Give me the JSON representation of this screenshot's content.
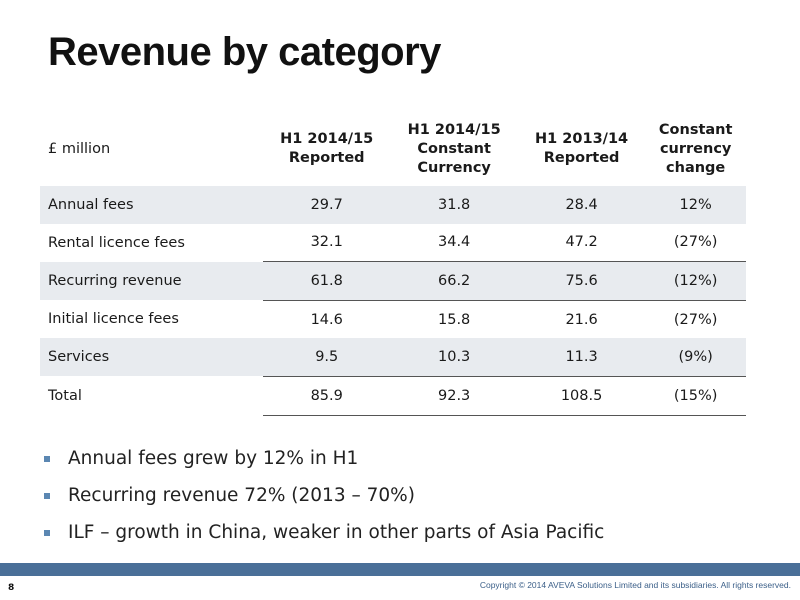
{
  "slide": {
    "title": "Revenue by category",
    "page_number": "8",
    "copyright": "Copyright © 2014 AVEVA Solutions Limited and its subsidiaries. All rights reserved."
  },
  "table": {
    "headers": [
      "£ million",
      "H1 2014/15\nReported",
      "H1 2014/15\nConstant\nCurrency",
      "H1 2013/14\nReported",
      "Constant\ncurrency\nchange"
    ],
    "rows": [
      [
        "Annual fees",
        "29.7",
        "31.8",
        "28.4",
        "12%"
      ],
      [
        "Rental licence fees",
        "32.1",
        "34.4",
        "47.2",
        "(27%)"
      ],
      [
        "Recurring revenue",
        "61.8",
        "66.2",
        "75.6",
        "(12%)"
      ],
      [
        "Initial licence fees",
        "14.6",
        "15.8",
        "21.6",
        "(27%)"
      ],
      [
        "Services",
        "9.5",
        "10.3",
        "11.3",
        "(9%)"
      ],
      [
        "Total",
        "85.9",
        "92.3",
        "108.5",
        "(15%)"
      ]
    ]
  },
  "bullets": [
    "Annual fees grew by 12% in H1",
    "Recurring revenue 72% (2013 – 70%)",
    "ILF – growth in China, weaker in other parts of Asia Pacific"
  ],
  "colors": {
    "footer_bar": "#4a6f98",
    "row_shade": "#e8ebef",
    "bullet": "#5b87b2"
  }
}
